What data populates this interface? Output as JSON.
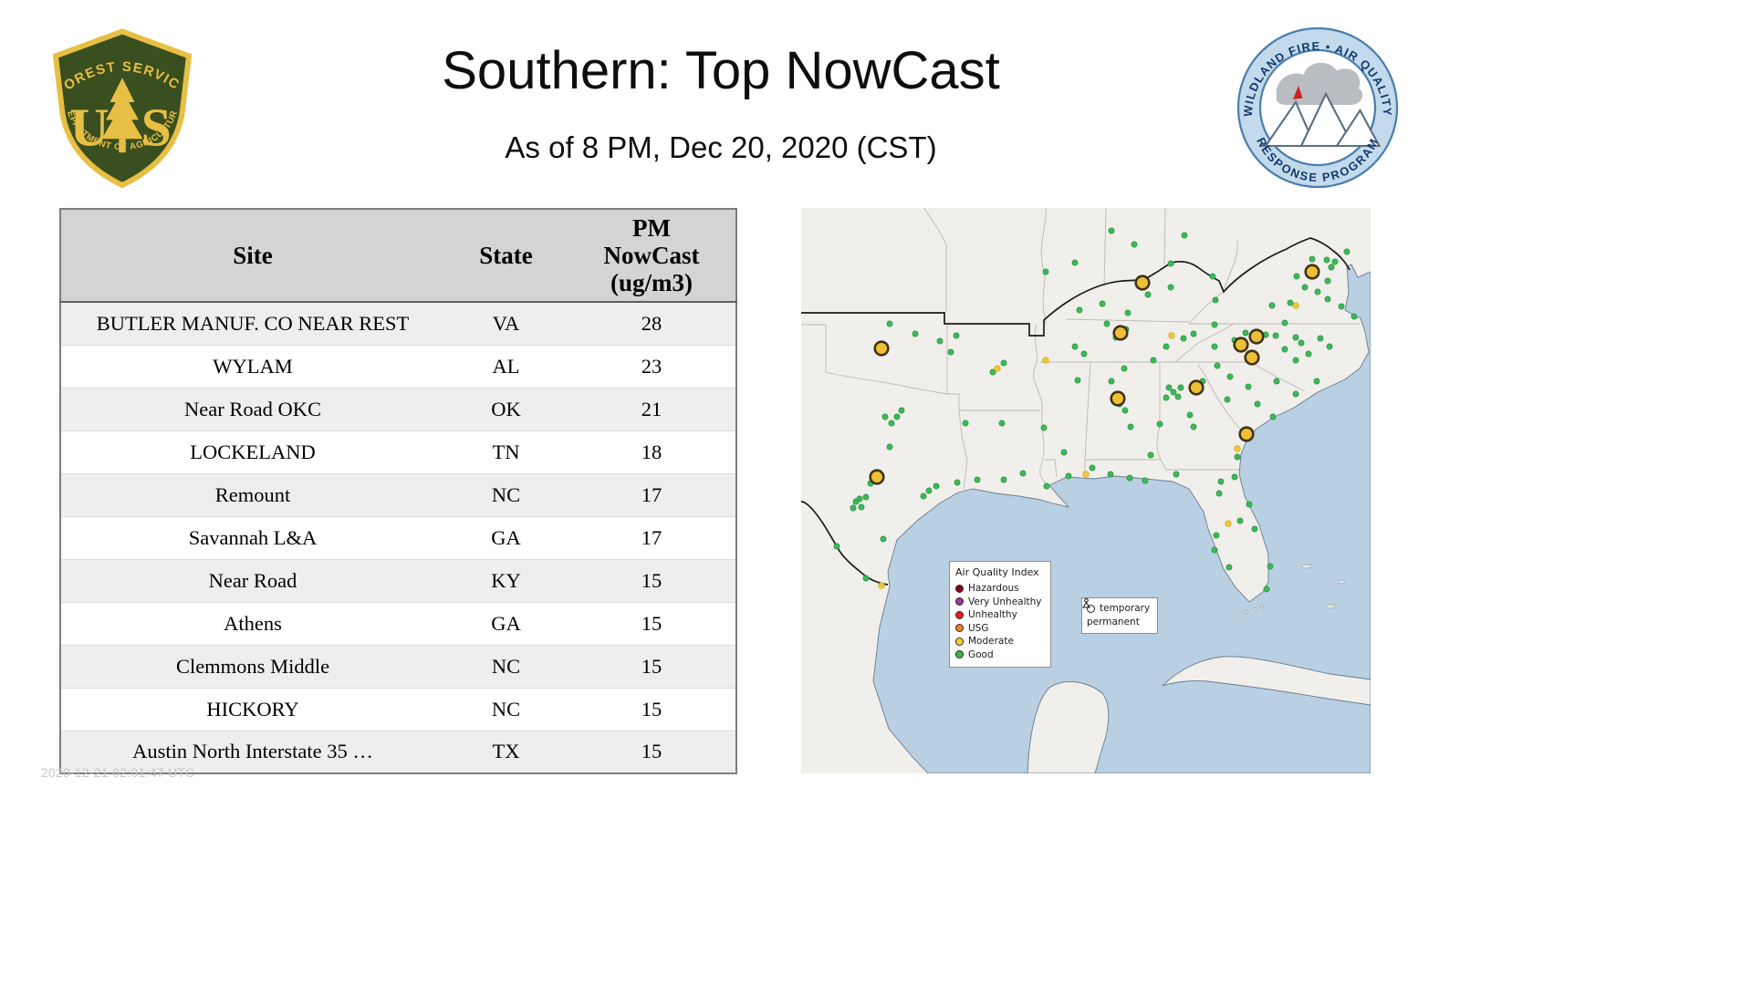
{
  "header": {
    "title": "Southern: Top NowCast",
    "subtitle": "As of  8 PM, Dec 20, 2020 (CST)"
  },
  "logos": {
    "usfs": {
      "arc_top": "FOREST SERVICE",
      "letter_left": "U",
      "letter_right": "S",
      "arc_bottom": "DEPARTMENT OF AGRICULTURE"
    },
    "wfaqrp": {
      "arc_top": "WILDLAND FIRE • AIR QUALITY",
      "arc_bottom": "RESPONSE PROGRAM"
    }
  },
  "table": {
    "headers": [
      "Site",
      "State",
      "PM NowCast (ug/m3)"
    ],
    "rows": [
      {
        "site": "BUTLER MANUF. CO NEAR REST",
        "state": "VA",
        "value": "28"
      },
      {
        "site": "WYLAM",
        "state": "AL",
        "value": "23"
      },
      {
        "site": "Near Road OKC",
        "state": "OK",
        "value": "21"
      },
      {
        "site": "LOCKELAND",
        "state": "TN",
        "value": "18"
      },
      {
        "site": "Remount",
        "state": "NC",
        "value": "17"
      },
      {
        "site": "Savannah L&A",
        "state": "GA",
        "value": "17"
      },
      {
        "site": "Near Road",
        "state": "KY",
        "value": "15"
      },
      {
        "site": "Athens",
        "state": "GA",
        "value": "15"
      },
      {
        "site": "Clemmons Middle",
        "state": "NC",
        "value": "15"
      },
      {
        "site": "HICKORY",
        "state": "NC",
        "value": "15"
      },
      {
        "site": "Austin North Interstate 35 …",
        "state": "TX",
        "value": "15"
      }
    ]
  },
  "map": {
    "legend": {
      "title": "Air Quality Index",
      "items": [
        {
          "label": "Hazardous",
          "color": "#7e0023"
        },
        {
          "label": "Very Unhealthy",
          "color": "#8f3f97"
        },
        {
          "label": "Unhealthy",
          "color": "#e02020"
        },
        {
          "label": "USG",
          "color": "#f08022"
        },
        {
          "label": "Moderate",
          "color": "#f5d328"
        },
        {
          "label": "Good",
          "color": "#2fbf4e"
        }
      ]
    },
    "marker_legend": {
      "temporary": "temporary",
      "permanent": "permanent"
    },
    "colors": {
      "land": "#f1efeb",
      "water": "#b9cfe2",
      "coast": "#6b7b8d",
      "state_line": "#bdb9b2",
      "region_line": "#1a1a1a",
      "good": "#3cb95a",
      "good_edge": "#27923f",
      "moderate": "#f0c93a",
      "moderate_edge": "#c9a818",
      "site_fill": "#eebf37",
      "site_stroke": "#3f3416"
    },
    "points": {
      "good": [
        [
          125,
          138
        ],
        [
          97,
          127
        ],
        [
          152,
          146
        ],
        [
          164,
          158
        ],
        [
          170,
          140
        ],
        [
          210,
          180
        ],
        [
          222,
          170
        ],
        [
          105,
          229
        ],
        [
          92,
          229
        ],
        [
          99,
          236
        ],
        [
          110,
          222
        ],
        [
          97,
          262
        ],
        [
          82,
          296
        ],
        [
          76,
          302
        ],
        [
          64,
          319
        ],
        [
          60,
          322
        ],
        [
          66,
          328
        ],
        [
          71,
          317
        ],
        [
          57,
          329
        ],
        [
          140,
          310
        ],
        [
          148,
          305
        ],
        [
          134,
          316
        ],
        [
          171,
          301
        ],
        [
          90,
          363
        ],
        [
          39,
          371
        ],
        [
          71,
          406
        ],
        [
          180,
          236
        ],
        [
          243,
          291
        ],
        [
          269,
          305
        ],
        [
          222,
          298
        ],
        [
          193,
          298
        ],
        [
          220,
          236
        ],
        [
          266,
          241
        ],
        [
          293,
          294
        ],
        [
          303,
          189
        ],
        [
          288,
          268
        ],
        [
          349,
          215
        ],
        [
          343,
          206
        ],
        [
          355,
          222
        ],
        [
          361,
          240
        ],
        [
          319,
          285
        ],
        [
          354,
          176
        ],
        [
          383,
          271
        ],
        [
          340,
          190
        ],
        [
          408,
          202
        ],
        [
          403,
          197
        ],
        [
          413,
          207
        ],
        [
          400,
          208
        ],
        [
          416,
          197
        ],
        [
          393,
          237
        ],
        [
          426,
          227
        ],
        [
          467,
          210
        ],
        [
          478,
          273
        ],
        [
          440,
          190
        ],
        [
          430,
          240
        ],
        [
          411,
          292
        ],
        [
          475,
          295
        ],
        [
          458,
          313
        ],
        [
          481,
          343
        ],
        [
          455,
          359
        ],
        [
          453,
          375
        ],
        [
          469,
          394
        ],
        [
          514,
          393
        ],
        [
          510,
          418
        ],
        [
          491,
          325
        ],
        [
          339,
          292
        ],
        [
          377,
          299
        ],
        [
          360,
          296
        ],
        [
          497,
          352
        ],
        [
          460,
          300
        ],
        [
          386,
          167
        ],
        [
          419,
          143
        ],
        [
          453,
          128
        ],
        [
          345,
          142
        ],
        [
          356,
          133
        ],
        [
          300,
          152
        ],
        [
          335,
          127
        ],
        [
          310,
          160
        ],
        [
          400,
          152
        ],
        [
          430,
          138
        ],
        [
          358,
          115
        ],
        [
          405,
          87
        ],
        [
          405,
          61
        ],
        [
          451,
          75
        ],
        [
          305,
          112
        ],
        [
          454,
          101
        ],
        [
          380,
          95
        ],
        [
          330,
          105
        ],
        [
          516,
          107
        ],
        [
          536,
          104
        ],
        [
          577,
          100
        ],
        [
          606,
          119
        ],
        [
          577,
          80
        ],
        [
          581,
          65
        ],
        [
          585,
          59
        ],
        [
          576,
          57
        ],
        [
          560,
          56
        ],
        [
          543,
          75
        ],
        [
          552,
          87
        ],
        [
          530,
          126
        ],
        [
          592,
          108
        ],
        [
          566,
          92
        ],
        [
          548,
          148
        ],
        [
          542,
          142
        ],
        [
          520,
          140
        ],
        [
          509,
          139
        ],
        [
          453,
          152
        ],
        [
          542,
          167
        ],
        [
          565,
          190
        ],
        [
          579,
          152
        ],
        [
          569,
          143
        ],
        [
          475,
          145
        ],
        [
          487,
          137
        ],
        [
          530,
          155
        ],
        [
          556,
          160
        ],
        [
          490,
          196
        ],
        [
          456,
          173
        ],
        [
          517,
          229
        ],
        [
          542,
          204
        ],
        [
          521,
          190
        ],
        [
          470,
          185
        ],
        [
          500,
          215
        ],
        [
          365,
          40
        ],
        [
          420,
          30
        ],
        [
          300,
          60
        ],
        [
          268,
          70
        ],
        [
          340,
          25
        ],
        [
          598,
          48
        ]
      ],
      "moderate": [
        [
          215,
          176
        ],
        [
          312,
          292
        ],
        [
          478,
          264
        ],
        [
          88,
          414
        ],
        [
          468,
          346
        ],
        [
          542,
          107
        ],
        [
          268,
          167
        ],
        [
          406,
          140
        ]
      ],
      "top_sites": [
        [
          560,
          70
        ],
        [
          374,
          82
        ],
        [
          350,
          137
        ],
        [
          88,
          154
        ],
        [
          499,
          141
        ],
        [
          482,
          150
        ],
        [
          494,
          164
        ],
        [
          433,
          197
        ],
        [
          347,
          209
        ],
        [
          488,
          248
        ],
        [
          83,
          295
        ]
      ]
    }
  },
  "footer": {
    "timestamp": "2020-12-21 02:01:47 UTC"
  },
  "chart_data": {
    "type": "table",
    "title": "Southern: Top NowCast",
    "subtitle": "As of 8 PM, Dec 20, 2020 (CST)",
    "columns": [
      "Site",
      "State",
      "PM NowCast (ug/m3)"
    ],
    "rows": [
      [
        "BUTLER MANUF. CO NEAR REST",
        "VA",
        28
      ],
      [
        "WYLAM",
        "AL",
        23
      ],
      [
        "Near Road OKC",
        "OK",
        21
      ],
      [
        "LOCKELAND",
        "TN",
        18
      ],
      [
        "Remount",
        "NC",
        17
      ],
      [
        "Savannah L&A",
        "GA",
        17
      ],
      [
        "Near Road",
        "KY",
        15
      ],
      [
        "Athens",
        "GA",
        15
      ],
      [
        "Clemmons Middle",
        "NC",
        15
      ],
      [
        "HICKORY",
        "NC",
        15
      ],
      [
        "Austin North Interstate 35 …",
        "TX",
        15
      ]
    ],
    "map_legend_categories": [
      "Hazardous",
      "Very Unhealthy",
      "Unhealthy",
      "USG",
      "Moderate",
      "Good"
    ],
    "map_marker_types": [
      "temporary",
      "permanent"
    ]
  }
}
